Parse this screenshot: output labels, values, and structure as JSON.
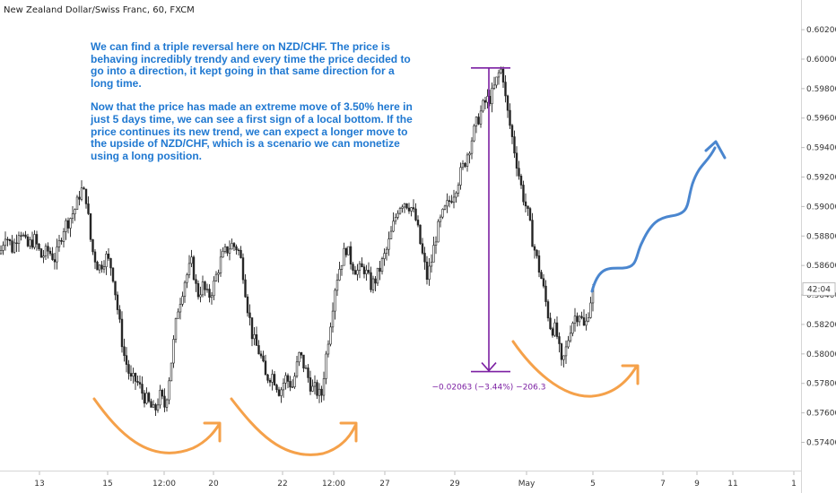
{
  "header": {
    "symbol_line": "New Zealand Dollar/Swiss Franc, 60, FXCM"
  },
  "annotation": {
    "paragraph1": "We can find a triple reversal here on NZD/CHF. The price is behaving incredibly trendy and every time the price decided to go into a direction, it kept going in that same direction for a long time.",
    "paragraph2": "Now that the price has made an extreme move of 3.50% here in just 5 days time, we can see a first sign of a local bottom. If the price continues its new trend, we can expect a longer move to the upside of NZD/CHF, which is a scenario we can monetize using a long position."
  },
  "measure": {
    "label": "−0.02063 (−3.44%) −206.3",
    "color": "#7b1fa2",
    "from_price": 0.5994,
    "to_price": 0.5788
  },
  "price_tag": {
    "label": "42:04",
    "price": 0.5844
  },
  "colors": {
    "candle": "#222222",
    "text_blue": "#1f78d1",
    "arrow_orange": "#f5a14a",
    "arrow_blue": "#4a86cf",
    "measure": "#7b1fa2"
  },
  "chart_data": {
    "type": "candlestick",
    "title": "New Zealand Dollar/Swiss Franc, 60, FXCM",
    "y_axis": {
      "position": "right",
      "ylim": [
        0.5733,
        0.6031
      ],
      "ticks": [
        "0.60200",
        "0.60000",
        "0.59800",
        "0.59600",
        "0.59400",
        "0.59200",
        "0.59000",
        "0.58800",
        "0.58600",
        "0.58400",
        "0.58200",
        "0.58000",
        "0.57800",
        "0.57600",
        "0.57400"
      ]
    },
    "x_axis": {
      "ticks": [
        "13",
        "15",
        "12:00",
        "20",
        "22",
        "12:00",
        "27",
        "29",
        "May",
        "5",
        "7",
        "9",
        "11",
        "1"
      ]
    },
    "close_path": [
      [
        0,
        0.5868
      ],
      [
        6,
        0.5882
      ],
      [
        14,
        0.5871
      ],
      [
        22,
        0.5886
      ],
      [
        30,
        0.5872
      ],
      [
        38,
        0.5878
      ],
      [
        46,
        0.5866
      ],
      [
        54,
        0.587
      ],
      [
        62,
        0.5864
      ],
      [
        70,
        0.5885
      ],
      [
        78,
        0.5892
      ],
      [
        85,
        0.59
      ],
      [
        90,
        0.5912
      ],
      [
        96,
        0.5906
      ],
      [
        102,
        0.5872
      ],
      [
        110,
        0.5858
      ],
      [
        118,
        0.5866
      ],
      [
        125,
        0.5858
      ],
      [
        132,
        0.5826
      ],
      [
        138,
        0.58
      ],
      [
        146,
        0.5782
      ],
      [
        152,
        0.5782
      ],
      [
        160,
        0.5772
      ],
      [
        166,
        0.5766
      ],
      [
        172,
        0.576
      ],
      [
        178,
        0.5772
      ],
      [
        184,
        0.5764
      ],
      [
        192,
        0.58
      ],
      [
        198,
        0.583
      ],
      [
        206,
        0.585
      ],
      [
        214,
        0.5862
      ],
      [
        220,
        0.584
      ],
      [
        226,
        0.5846
      ],
      [
        232,
        0.5838
      ],
      [
        238,
        0.5846
      ],
      [
        245,
        0.5862
      ],
      [
        252,
        0.587
      ],
      [
        258,
        0.5874
      ],
      [
        265,
        0.5872
      ],
      [
        270,
        0.586
      ],
      [
        276,
        0.5832
      ],
      [
        282,
        0.581
      ],
      [
        290,
        0.58
      ],
      [
        296,
        0.5784
      ],
      [
        304,
        0.5786
      ],
      [
        312,
        0.5774
      ],
      [
        318,
        0.5784
      ],
      [
        326,
        0.5778
      ],
      [
        334,
        0.58
      ],
      [
        340,
        0.579
      ],
      [
        348,
        0.5776
      ],
      [
        352,
        0.5776
      ],
      [
        358,
        0.577
      ],
      [
        362,
        0.5792
      ],
      [
        368,
        0.582
      ],
      [
        374,
        0.5848
      ],
      [
        380,
        0.5862
      ],
      [
        386,
        0.5872
      ],
      [
        392,
        0.5862
      ],
      [
        398,
        0.5856
      ],
      [
        406,
        0.5858
      ],
      [
        414,
        0.5846
      ],
      [
        420,
        0.5852
      ],
      [
        426,
        0.5862
      ],
      [
        432,
        0.5872
      ],
      [
        438,
        0.5886
      ],
      [
        444,
        0.59
      ],
      [
        450,
        0.5904
      ],
      [
        458,
        0.59
      ],
      [
        464,
        0.589
      ],
      [
        470,
        0.587
      ],
      [
        476,
        0.5852
      ],
      [
        480,
        0.586
      ],
      [
        486,
        0.588
      ],
      [
        492,
        0.5892
      ],
      [
        498,
        0.59
      ],
      [
        506,
        0.591
      ],
      [
        512,
        0.592
      ],
      [
        518,
        0.593
      ],
      [
        524,
        0.5942
      ],
      [
        532,
        0.5958
      ],
      [
        540,
        0.597
      ],
      [
        548,
        0.5975
      ],
      [
        556,
        0.599
      ],
      [
        560,
        0.5994
      ],
      [
        564,
        0.597
      ],
      [
        570,
        0.595
      ],
      [
        576,
        0.593
      ],
      [
        582,
        0.591
      ],
      [
        588,
        0.5896
      ],
      [
        594,
        0.5876
      ],
      [
        600,
        0.586
      ],
      [
        604,
        0.585
      ],
      [
        610,
        0.583
      ],
      [
        614,
        0.5818
      ],
      [
        620,
        0.5816
      ],
      [
        626,
        0.5792
      ],
      [
        630,
        0.58
      ],
      [
        636,
        0.5818
      ],
      [
        640,
        0.5825
      ],
      [
        646,
        0.5828
      ],
      [
        652,
        0.5816
      ],
      [
        658,
        0.5836
      ],
      [
        662,
        0.5844
      ]
    ]
  }
}
